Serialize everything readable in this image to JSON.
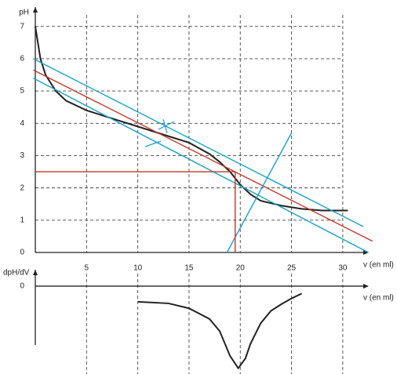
{
  "chart_data": [
    {
      "type": "line",
      "x_label": "v (en ml)",
      "y_label": "pH",
      "xlim": [
        0,
        32
      ],
      "ylim": [
        0,
        7.6
      ],
      "xticks": [
        5,
        10,
        15,
        20,
        25,
        30
      ],
      "yticks": [
        0,
        1,
        2,
        3,
        4,
        5,
        6,
        7
      ],
      "grid": true,
      "series": [
        {
          "color": "#222222",
          "x": [
            0,
            0.5,
            1,
            2,
            3,
            5,
            8,
            10,
            13,
            15,
            17,
            18,
            19,
            20,
            21,
            22,
            24,
            26,
            28,
            30,
            30.5
          ],
          "values": [
            7,
            6,
            5.5,
            5,
            4.7,
            4.4,
            4.1,
            3.9,
            3.6,
            3.4,
            3.05,
            2.8,
            2.5,
            2.1,
            1.8,
            1.6,
            1.45,
            1.35,
            1.3,
            1.3,
            1.3
          ]
        },
        {
          "color": "#1aa0c8",
          "x": [
            -0.2,
            32
          ],
          "values": [
            6,
            0.8
          ]
        },
        {
          "color": "#1aa0c8",
          "x": [
            -0.2,
            32.5
          ],
          "values": [
            5.4,
            0
          ]
        },
        {
          "color": "#c0392b",
          "x": [
            -0.2,
            32.9
          ],
          "values": [
            5.65,
            0.35
          ]
        },
        {
          "color": "#1aa0c8",
          "x": [
            18.7,
            25
          ],
          "values": [
            0,
            3.7
          ]
        },
        {
          "color": "#c0392b",
          "x": [
            0,
            19.5
          ],
          "values": [
            2.5,
            2.5
          ]
        },
        {
          "color": "#c0392b",
          "x": [
            19.5,
            19.5
          ],
          "values": [
            2.5,
            0
          ]
        }
      ]
    },
    {
      "type": "line",
      "x_label": "v (en ml)",
      "y_label": "dpH/dV",
      "xlim": [
        0,
        32
      ],
      "ylim": [
        -1.07,
        0.2
      ],
      "yticks": [
        0
      ],
      "series": [
        {
          "color": "#222222",
          "x": [
            10,
            13,
            15,
            17,
            18,
            19,
            19.8,
            20.5,
            21,
            22,
            23,
            24,
            25,
            26
          ],
          "values": [
            -0.19,
            -0.21,
            -0.27,
            -0.4,
            -0.55,
            -0.85,
            -1.0,
            -0.88,
            -0.7,
            -0.45,
            -0.3,
            -0.22,
            -0.15,
            -0.09
          ]
        }
      ]
    }
  ]
}
